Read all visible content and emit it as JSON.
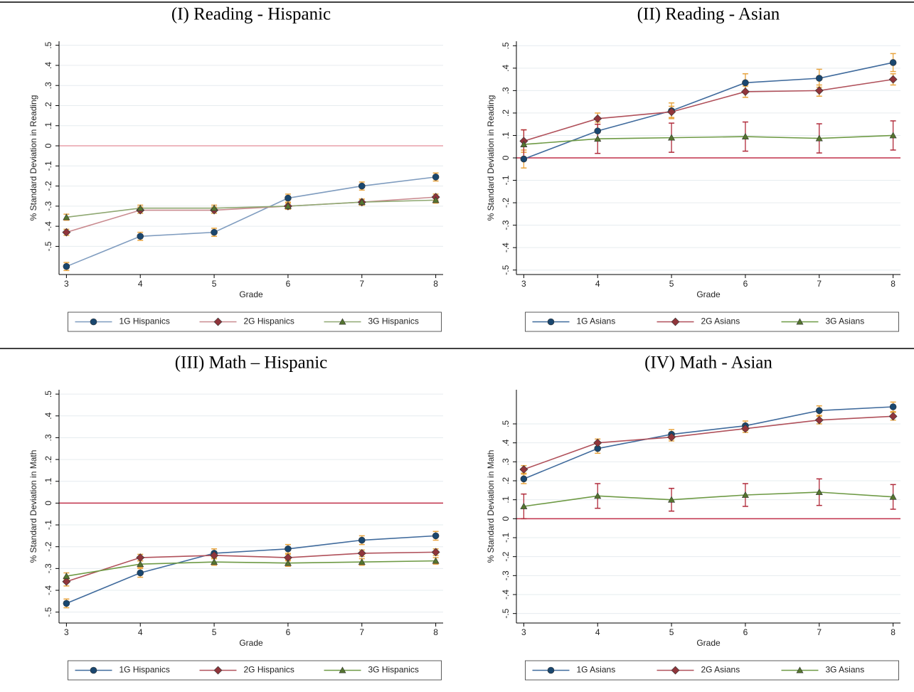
{
  "chart_data": [
    {
      "type": "line",
      "title": "(I) Reading - Hispanic",
      "x_label": "Grade",
      "y_label": "% Standard Deviation in Reading",
      "x": [
        3,
        4,
        5,
        6,
        7,
        8
      ],
      "xlim": [
        2.9,
        8.1
      ],
      "xticks": [
        3,
        4,
        5,
        6,
        7,
        8
      ],
      "ylim": [
        -0.64,
        0.52
      ],
      "yticks": [
        {
          "value": 0.5,
          "label": ".5"
        },
        {
          "value": 0.4,
          "label": ".4"
        },
        {
          "value": 0.3,
          "label": ".3"
        },
        {
          "value": 0.2,
          "label": ".2"
        },
        {
          "value": 0.1,
          "label": ".1"
        },
        0,
        {
          "value": -0.1,
          "label": "-.1"
        },
        {
          "value": -0.2,
          "label": "-.2"
        },
        {
          "value": -0.3,
          "label": "-.3"
        },
        {
          "value": -0.4,
          "label": "-.4"
        },
        {
          "value": -0.5,
          "label": "-.5"
        }
      ],
      "grid": true,
      "reference_line": 0,
      "reference_color": "#e8a0aa",
      "series": [
        {
          "name": "1G Hispanics",
          "color": "#1a476f",
          "line_color": "#7f9cbf",
          "marker": "circle",
          "error_color": "#e8a33d",
          "values": [
            -0.6,
            -0.45,
            -0.43,
            -0.26,
            -0.2,
            -0.155
          ],
          "errors": [
            0.02,
            0.02,
            0.02,
            0.02,
            0.02,
            0.02
          ]
        },
        {
          "name": "2G Hispanics",
          "color": "#90353b",
          "line_color": "#c98a8f",
          "marker": "diamond",
          "error_color": "#e8a33d",
          "values": [
            -0.43,
            -0.32,
            -0.32,
            -0.3,
            -0.28,
            -0.255
          ],
          "errors": [
            0.015,
            0.015,
            0.015,
            0.015,
            0.015,
            0.015
          ]
        },
        {
          "name": "3G Hispanics",
          "color": "#55752f",
          "line_color": "#8fa872",
          "marker": "triangle",
          "error_color": "#e8a33d",
          "values": [
            -0.355,
            -0.31,
            -0.31,
            -0.3,
            -0.28,
            -0.27
          ],
          "errors": [
            0.015,
            0.015,
            0.015,
            0.015,
            0.015,
            0.015
          ]
        }
      ]
    },
    {
      "type": "line",
      "title": "(II) Reading - Asian",
      "x_label": "Grade",
      "y_label": "% Standard Deviation in Reading",
      "x": [
        3,
        4,
        5,
        6,
        7,
        8
      ],
      "xlim": [
        2.9,
        8.1
      ],
      "xticks": [
        3,
        4,
        5,
        6,
        7,
        8
      ],
      "ylim": [
        -0.52,
        0.52
      ],
      "yticks": [
        {
          "value": 0.5,
          "label": ".5"
        },
        {
          "value": 0.4,
          "label": ".4"
        },
        {
          "value": 0.3,
          "label": ".3"
        },
        {
          "value": 0.2,
          "label": ".2"
        },
        {
          "value": 0.1,
          "label": ".1"
        },
        0,
        {
          "value": -0.1,
          "label": "-.1"
        },
        {
          "value": -0.2,
          "label": "-.2"
        },
        {
          "value": -0.3,
          "label": "-.3"
        },
        {
          "value": -0.4,
          "label": "-.4"
        },
        {
          "value": -0.5,
          "label": "-.5"
        }
      ],
      "grid": true,
      "reference_line": 0,
      "reference_color": "#c0304a",
      "series": [
        {
          "name": "1G Asians",
          "color": "#1a476f",
          "line_color": "#3f6a9c",
          "marker": "circle",
          "error_color": "#e8a33d",
          "values": [
            -0.005,
            0.12,
            0.21,
            0.335,
            0.355,
            0.425
          ],
          "errors": [
            0.04,
            0.04,
            0.035,
            0.04,
            0.04,
            0.04
          ]
        },
        {
          "name": "2G Asians",
          "color": "#90353b",
          "line_color": "#b0505a",
          "marker": "diamond",
          "error_color": "#e8a33d",
          "values": [
            0.075,
            0.175,
            0.205,
            0.295,
            0.3,
            0.35
          ],
          "errors": [
            0.05,
            0.025,
            0.025,
            0.025,
            0.025,
            0.025
          ]
        },
        {
          "name": "3G Asians",
          "color": "#55752f",
          "line_color": "#6e9a45",
          "marker": "triangle",
          "error_color": "#b02a3a",
          "values": [
            0.06,
            0.085,
            0.09,
            0.095,
            0.087,
            0.1
          ],
          "errors": [
            0.065,
            0.065,
            0.065,
            0.065,
            0.065,
            0.065
          ]
        }
      ]
    },
    {
      "type": "line",
      "title": "(III) Math – Hispanic",
      "x_label": "Grade",
      "y_label": "% Standard Deviation in Math",
      "x": [
        3,
        4,
        5,
        6,
        7,
        8
      ],
      "xlim": [
        2.9,
        8.1
      ],
      "xticks": [
        3,
        4,
        5,
        6,
        7,
        8
      ],
      "ylim": [
        -0.55,
        0.52
      ],
      "yticks": [
        {
          "value": 0.5,
          "label": ".5"
        },
        {
          "value": 0.4,
          "label": ".4"
        },
        {
          "value": 0.3,
          "label": ".3"
        },
        {
          "value": 0.2,
          "label": ".2"
        },
        {
          "value": 0.1,
          "label": ".1"
        },
        0,
        {
          "value": -0.1,
          "label": "-.1"
        },
        {
          "value": -0.2,
          "label": "-.2"
        },
        {
          "value": -0.3,
          "label": "-.3"
        },
        {
          "value": -0.4,
          "label": "-.4"
        },
        {
          "value": -0.5,
          "label": "-.5"
        }
      ],
      "grid": true,
      "reference_line": 0,
      "reference_color": "#c0304a",
      "series": [
        {
          "name": "1G Hispanics",
          "color": "#1a476f",
          "line_color": "#3f6a9c",
          "marker": "circle",
          "error_color": "#e8a33d",
          "values": [
            -0.46,
            -0.32,
            -0.23,
            -0.21,
            -0.17,
            -0.15
          ],
          "errors": [
            0.02,
            0.02,
            0.02,
            0.02,
            0.02,
            0.02
          ]
        },
        {
          "name": "2G Hispanics",
          "color": "#90353b",
          "line_color": "#b0505a",
          "marker": "diamond",
          "error_color": "#e8a33d",
          "values": [
            -0.36,
            -0.25,
            -0.24,
            -0.25,
            -0.23,
            -0.225
          ],
          "errors": [
            0.02,
            0.015,
            0.015,
            0.015,
            0.015,
            0.015
          ]
        },
        {
          "name": "3G Hispanics",
          "color": "#55752f",
          "line_color": "#6e9a45",
          "marker": "triangle",
          "error_color": "#e8a33d",
          "values": [
            -0.335,
            -0.28,
            -0.27,
            -0.275,
            -0.27,
            -0.265
          ],
          "errors": [
            0.015,
            0.015,
            0.015,
            0.015,
            0.015,
            0.015
          ]
        }
      ]
    },
    {
      "type": "line",
      "title": "(IV) Math - Asian",
      "x_label": "Grade",
      "y_label": "% Standard Deviation in Math",
      "x": [
        3,
        4,
        5,
        6,
        7,
        8
      ],
      "xlim": [
        2.9,
        8.1
      ],
      "xticks": [
        3,
        4,
        5,
        6,
        7,
        8
      ],
      "ylim": [
        -0.55,
        0.68
      ],
      "yticks": [
        {
          "value": 0.5,
          "label": ".5"
        },
        {
          "value": 0.4,
          "label": ".4"
        },
        {
          "value": 0.3,
          "label": ".3"
        },
        {
          "value": 0.2,
          "label": ".2"
        },
        {
          "value": 0.1,
          "label": ".1"
        },
        0,
        {
          "value": -0.1,
          "label": "-.1"
        },
        {
          "value": -0.2,
          "label": "-.2"
        },
        {
          "value": -0.3,
          "label": "-.3"
        },
        {
          "value": -0.4,
          "label": "-.4"
        },
        {
          "value": -0.5,
          "label": "-.5"
        }
      ],
      "grid": true,
      "reference_line": 0,
      "reference_color": "#c0304a",
      "series": [
        {
          "name": "1G Asians",
          "color": "#1a476f",
          "line_color": "#3f6a9c",
          "marker": "circle",
          "error_color": "#e8a33d",
          "values": [
            0.21,
            0.37,
            0.445,
            0.49,
            0.57,
            0.59
          ],
          "errors": [
            0.025,
            0.025,
            0.025,
            0.025,
            0.025,
            0.025
          ]
        },
        {
          "name": "2G Asians",
          "color": "#90353b",
          "line_color": "#b0505a",
          "marker": "diamond",
          "error_color": "#e8a33d",
          "values": [
            0.26,
            0.4,
            0.43,
            0.475,
            0.52,
            0.54
          ],
          "errors": [
            0.02,
            0.02,
            0.02,
            0.02,
            0.02,
            0.02
          ]
        },
        {
          "name": "3G Asians",
          "color": "#55752f",
          "line_color": "#6e9a45",
          "marker": "triangle",
          "error_color": "#b02a3a",
          "values": [
            0.065,
            0.12,
            0.1,
            0.125,
            0.14,
            0.115
          ],
          "errors": [
            0.065,
            0.065,
            0.06,
            0.06,
            0.07,
            0.065
          ]
        }
      ]
    }
  ]
}
